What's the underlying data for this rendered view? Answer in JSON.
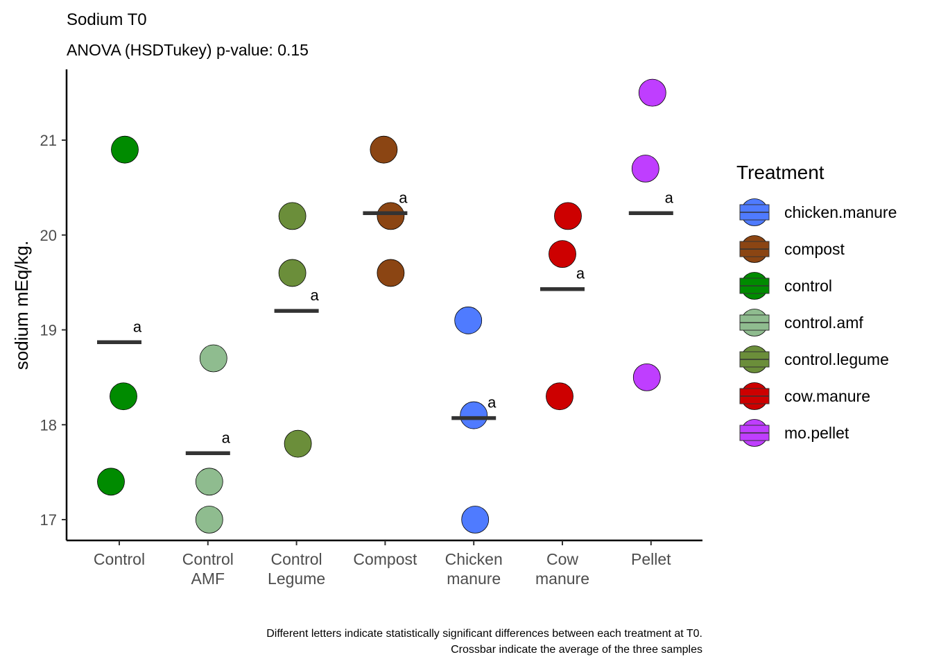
{
  "chart_data": {
    "type": "scatter",
    "title": "Sodium T0",
    "subtitle": "ANOVA (HSDTukey) p-value: 0.15",
    "xlabel": "",
    "ylabel": "sodium mEq/kg.",
    "ylim": [
      16.8,
      21.7
    ],
    "yticks": [
      17,
      18,
      19,
      20,
      21
    ],
    "grid": false,
    "categories": [
      {
        "label_lines": [
          "Control"
        ],
        "treatment": "control",
        "points": [
          20.9,
          18.3,
          17.4
        ],
        "mean": 18.87,
        "letter": "a"
      },
      {
        "label_lines": [
          "Control",
          "AMF"
        ],
        "treatment": "control.amf",
        "points": [
          18.7,
          17.4,
          17.0
        ],
        "mean": 17.7,
        "letter": "a"
      },
      {
        "label_lines": [
          "Control",
          "Legume"
        ],
        "treatment": "control.legume",
        "points": [
          20.2,
          19.6,
          17.8
        ],
        "mean": 19.2,
        "letter": "a"
      },
      {
        "label_lines": [
          "Compost"
        ],
        "treatment": "compost",
        "points": [
          20.9,
          20.2,
          19.6
        ],
        "mean": 20.23,
        "letter": "a"
      },
      {
        "label_lines": [
          "Chicken",
          "manure"
        ],
        "treatment": "chicken.manure",
        "points": [
          19.1,
          18.1,
          17.0
        ],
        "mean": 18.07,
        "letter": "a"
      },
      {
        "label_lines": [
          "Cow",
          "manure"
        ],
        "treatment": "cow.manure",
        "points": [
          20.2,
          19.8,
          18.3
        ],
        "mean": 19.43,
        "letter": "a"
      },
      {
        "label_lines": [
          "Pellet"
        ],
        "treatment": "mo.pellet",
        "points": [
          21.5,
          20.7,
          18.5
        ],
        "mean": 20.23,
        "letter": "a"
      }
    ],
    "legend": {
      "title": "Treatment",
      "placement": "right",
      "entries": [
        {
          "name": "chicken.manure",
          "color": "#4f7bff"
        },
        {
          "name": "compost",
          "color": "#8b4513"
        },
        {
          "name": "control",
          "color": "#008b00"
        },
        {
          "name": "control.amf",
          "color": "#8fbc8f"
        },
        {
          "name": "control.legume",
          "color": "#6b8e3a"
        },
        {
          "name": "cow.manure",
          "color": "#cd0000"
        },
        {
          "name": "mo.pellet",
          "color": "#bf3eff"
        }
      ]
    },
    "caption_lines": [
      "Different letters indicate statistically significant differences between each treatment at T0.",
      "Crossbar indicate the average of the three samples"
    ]
  }
}
